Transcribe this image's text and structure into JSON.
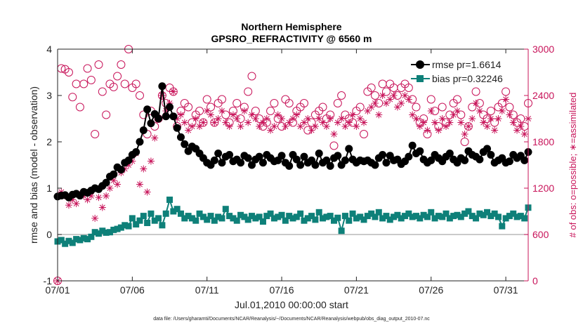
{
  "chart_data": {
    "type": "line",
    "title": "Northern Hemisphere",
    "subtitle": "GPSRO_REFRACTIVITY @ 6560 m",
    "xlabel": "Jul.01,2010 00:00:00 start",
    "ylabel_left": "rmse and bias (model - observation)",
    "ylabel_right": "# of obs: o=possible; ∗=assimilated",
    "footnote": "data file: /Users/gharamti/Documents/NCAR/Reanalysis/~/Documents/NCAR/Reanalysis/webpub/obs_diag_output_2010-07.nc",
    "xlim": [
      0,
      31.5
    ],
    "ylim_left": [
      -1,
      4
    ],
    "ylim_right": [
      0,
      3000
    ],
    "x_ticks": [
      0,
      5,
      10,
      15,
      20,
      25,
      30
    ],
    "x_tick_labels": [
      "07/01",
      "07/06",
      "07/11",
      "07/16",
      "07/21",
      "07/26",
      "07/31"
    ],
    "y_ticks_left": [
      -1,
      0,
      1,
      2,
      3,
      4
    ],
    "y_tick_labels_left": [
      "-1",
      "0",
      "1",
      "2",
      "3",
      "4"
    ],
    "y_ticks_right": [
      0,
      600,
      1200,
      1800,
      2400,
      3000
    ],
    "y_tick_labels_right": [
      "0",
      "600",
      "1200",
      "1800",
      "2400",
      "3000"
    ],
    "zero_line": 0,
    "legend_position": "top-right",
    "colors": {
      "rmse": "#000000",
      "bias": "#0e8079",
      "obs": "#c8145a",
      "zero": "#aaaaaa"
    },
    "series": [
      {
        "name": "rmse pr=1.6614",
        "axis": "left",
        "values": [
          0.82,
          0.84,
          0.85,
          0.8,
          0.86,
          0.88,
          0.84,
          0.92,
          0.9,
          0.95,
          1.0,
          0.98,
          1.05,
          1.12,
          1.25,
          1.3,
          1.45,
          1.4,
          1.55,
          1.6,
          1.72,
          1.78,
          2.0,
          2.25,
          2.7,
          2.4,
          2.6,
          2.5,
          3.2,
          2.55,
          2.75,
          2.55,
          2.3,
          2.1,
          1.95,
          1.8,
          1.9,
          1.85,
          1.75,
          1.65,
          1.55,
          1.5,
          1.6,
          1.75,
          1.55,
          1.68,
          1.72,
          1.58,
          1.62,
          1.55,
          1.7,
          1.65,
          1.5,
          1.62,
          1.68,
          1.55,
          1.72,
          1.65,
          1.58,
          1.6,
          1.7,
          1.55,
          1.48,
          1.72,
          1.62,
          1.5,
          1.68,
          1.55,
          1.6,
          1.5,
          1.75,
          1.55,
          1.6,
          1.48,
          1.65,
          1.7,
          1.5,
          1.6,
          1.85,
          1.62,
          1.55,
          1.6,
          1.58,
          1.6,
          1.55,
          1.5,
          1.65,
          1.72,
          1.55,
          1.7,
          1.6,
          1.62,
          1.52,
          1.58,
          1.68,
          1.92,
          1.75,
          1.8,
          1.62,
          1.55,
          1.6,
          1.72,
          1.65,
          1.58,
          1.68,
          1.75,
          1.62,
          1.55,
          1.65,
          1.6,
          1.8,
          1.72,
          1.68,
          1.62,
          1.78,
          1.85,
          1.72,
          1.55,
          1.6,
          1.65,
          1.55,
          1.58,
          1.72,
          1.65,
          1.7,
          1.6,
          1.78
        ]
      },
      {
        "name": "bias pr=0.32246",
        "axis": "left",
        "values": [
          -0.15,
          -0.12,
          -0.2,
          -0.14,
          -0.18,
          -0.1,
          -0.12,
          -0.08,
          -0.1,
          -0.05,
          0.05,
          0.02,
          0.08,
          0.04,
          0.05,
          0.1,
          0.12,
          0.15,
          0.2,
          0.18,
          0.35,
          0.22,
          0.3,
          0.4,
          0.25,
          0.45,
          0.3,
          0.35,
          0.2,
          0.45,
          0.75,
          0.5,
          0.55,
          0.45,
          0.35,
          0.4,
          0.35,
          0.3,
          0.45,
          0.38,
          0.32,
          0.4,
          0.3,
          0.38,
          0.35,
          0.55,
          0.4,
          0.35,
          0.3,
          0.42,
          0.38,
          0.32,
          0.4,
          0.35,
          0.38,
          0.28,
          0.4,
          0.45,
          0.35,
          0.38,
          0.42,
          0.3,
          0.4,
          0.35,
          0.38,
          0.45,
          0.3,
          0.35,
          0.4,
          0.32,
          0.48,
          0.35,
          0.38,
          0.4,
          0.3,
          0.36,
          0.08,
          0.4,
          0.3,
          0.45,
          0.35,
          0.38,
          0.32,
          0.4,
          0.45,
          0.38,
          0.48,
          0.35,
          0.4,
          0.32,
          0.38,
          0.42,
          0.35,
          0.4,
          0.45,
          0.38,
          0.4,
          0.35,
          0.42,
          0.38,
          0.48,
          0.35,
          0.4,
          0.38,
          0.45,
          0.35,
          0.4,
          0.42,
          0.38,
          0.45,
          0.5,
          0.4,
          0.35,
          0.45,
          0.42,
          0.48,
          0.4,
          0.45,
          0.38,
          0.18,
          0.35,
          0.4,
          0.45,
          0.38,
          0.4,
          0.35,
          0.58
        ]
      },
      {
        "name": "obs possible",
        "axis": "right",
        "marker": "circle",
        "values": [
          0,
          2750,
          2740,
          2700,
          2380,
          2550,
          2250,
          2550,
          2750,
          2600,
          1900,
          2800,
          2450,
          2150,
          2550,
          2510,
          2650,
          2800,
          2550,
          3000,
          2500,
          2550,
          2400,
          2150,
          1900,
          2200,
          2000,
          2100,
          2400,
          2300,
          2500,
          2450,
          2000,
          2200,
          2300,
          2250,
          2050,
          2150,
          2200,
          2050,
          2350,
          2250,
          2050,
          2300,
          2350,
          2150,
          2050,
          2200,
          2300,
          2100,
          2250,
          2450,
          2650,
          2200,
          2100,
          2000,
          2050,
          2200,
          2300,
          2100,
          2000,
          2350,
          2300,
          2050,
          2200,
          2250,
          2300,
          1950,
          2050,
          2150,
          2200,
          2250,
          2100,
          2150,
          1750,
          2300,
          2400,
          2150,
          2100,
          2050,
          2200,
          2250,
          1900,
          2450,
          2500,
          2400,
          2300,
          2550,
          2450,
          2550,
          2500,
          2400,
          2500,
          2550,
          2500,
          2350,
          2250,
          2050,
          2100,
          1900,
          2350,
          2200,
          2000,
          2250,
          2050,
          2150,
          2300,
          2350,
          2150,
          1800,
          2000,
          2250,
          2450,
          2300,
          2150,
          2100,
          2200,
          2050,
          2250,
          2300,
          2450,
          2250,
          2150,
          2050,
          2100,
          2000,
          2300
        ]
      },
      {
        "name": "obs assimilated",
        "axis": "right",
        "marker": "asterisk",
        "values": [
          0,
          1150,
          1100,
          980,
          1050,
          1000,
          1120,
          1100,
          1050,
          1100,
          810,
          1080,
          950,
          1100,
          1200,
          1300,
          1250,
          1400,
          1450,
          1500,
          1550,
          1650,
          1250,
          1450,
          1150,
          1550,
          1850,
          2100,
          2400,
          2200,
          2300,
          2450,
          2100,
          2150,
          2050,
          1950,
          2000,
          2100,
          2000,
          2050,
          2200,
          2150,
          2050,
          2100,
          2200,
          2050,
          2000,
          2150,
          2100,
          2000,
          2200,
          2050,
          2150,
          2100,
          2000,
          2050,
          2100,
          1950,
          2000,
          2150,
          2100,
          2000,
          2050,
          2100,
          2150,
          2000,
          2050,
          2100,
          1950,
          2000,
          2100,
          2050,
          2000,
          2100,
          1900,
          2050,
          2100,
          2000,
          2050,
          2150,
          2000,
          2100,
          2050,
          2200,
          2250,
          2300,
          2150,
          2400,
          2300,
          2350,
          2400,
          2250,
          2300,
          2400,
          2350,
          2150,
          2100,
          2000,
          2050,
          1950,
          2200,
          2050,
          1950,
          2100,
          2000,
          2050,
          2150,
          2200,
          2050,
          1900,
          2000,
          2100,
          2300,
          2200,
          2050,
          2000,
          2100,
          1950,
          2100,
          2200,
          2350,
          2150,
          2050,
          1950,
          2000,
          1900,
          2100
        ]
      }
    ]
  }
}
